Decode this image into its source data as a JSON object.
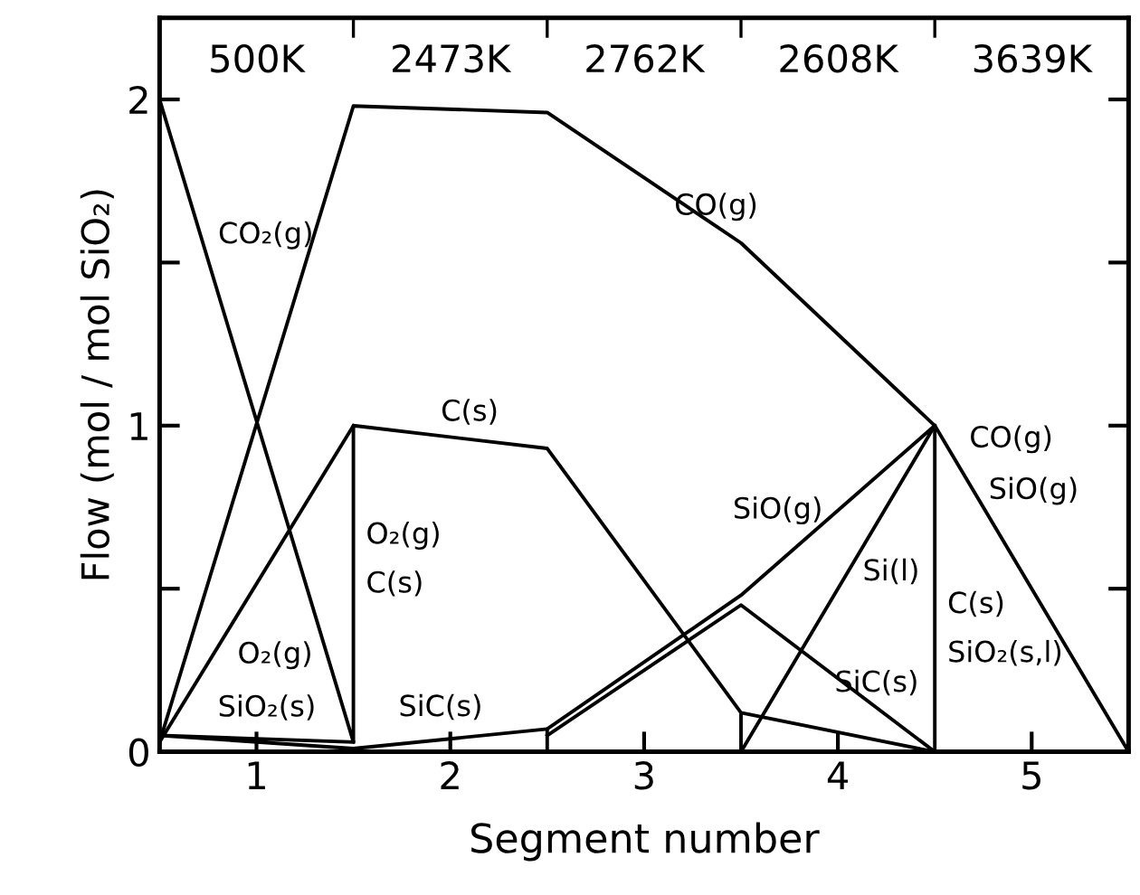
{
  "chart_data": {
    "type": "line",
    "xlabel": "Segment number",
    "ylabel": "Flow (mol / mol SiO₂)",
    "xlim": [
      0.5,
      5.5
    ],
    "xticks": [
      1,
      2,
      3,
      4,
      5
    ],
    "ylim": [
      0,
      2.25
    ],
    "yticks": [
      0,
      {
        "value": 0.5,
        "label": null
      },
      1,
      {
        "value": 1.5,
        "label": null
      },
      2
    ],
    "grid": false,
    "legend": false,
    "marker": "none",
    "line_style": "solid",
    "series": [
      {
        "color": "#000000",
        "x": [
          0.5,
          1.5,
          1.5,
          2.5,
          3.5,
          3.5,
          3.5,
          4.5
        ],
        "values": [
          2.0,
          0.03,
          1.0,
          0.93,
          0.12,
          0.0,
          0.12,
          0.0
        ]
      },
      {
        "color": "#000000",
        "x": [
          0.5,
          1.5,
          2.5,
          3.5,
          4.5,
          5.5
        ],
        "values": [
          0.03,
          1.98,
          1.96,
          1.56,
          1.0,
          0.0
        ]
      },
      {
        "color": "#000000",
        "x": [
          1.5,
          0.5
        ],
        "values": [
          1.0,
          0.03
        ]
      },
      {
        "color": "#000000",
        "x": [
          1.5,
          0.5,
          1.5,
          2.5,
          2.5
        ],
        "values": [
          0.03,
          0.05,
          0.01,
          0.07,
          0.0
        ]
      },
      {
        "color": "#000000",
        "x": [
          2.5,
          3.5,
          4.5,
          3.5
        ],
        "values": [
          0.07,
          0.48,
          1.0,
          0.0
        ]
      },
      {
        "color": "#000000",
        "x": [
          4.5,
          4.5
        ],
        "values": [
          0.0,
          1.0
        ]
      },
      {
        "color": "#000000",
        "x": [
          2.5,
          3.5,
          4.5
        ],
        "values": [
          0.05,
          0.45,
          0.0
        ]
      }
    ],
    "annotations": [
      {
        "text": "CO₂(g)",
        "x": 0.75,
        "y": 1.51
      },
      {
        "text": "CO(g)",
        "x": 3.0,
        "y": 1.76
      },
      {
        "text": "C(s)",
        "x": 2.1,
        "y": 0.958
      },
      {
        "text": "O₂(g)",
        "x": 1.5,
        "y": 0.62
      },
      {
        "text": "C(s)",
        "x": 1.5,
        "y": 0.47
      },
      {
        "text": "O₂(g)",
        "x": 0.85,
        "y": 0.37
      },
      {
        "text": "SiO₂(s)",
        "x": 0.8,
        "y": 0.044
      },
      {
        "text": "SiC(s)",
        "x": 1.95,
        "y": 0.045
      },
      {
        "text": "SiO(g)",
        "x": 4.0,
        "y": 0.74
      },
      {
        "text": "Si(l)",
        "x": 4.05,
        "y": 0.55
      },
      {
        "text": "SiC(s)",
        "x": 4.2,
        "y": 0.135
      },
      {
        "text": "C(s)",
        "x": 4.5,
        "y": 0.45
      },
      {
        "text": "SiO₂(s,l)",
        "x": 4.5,
        "y": 0.3
      },
      {
        "text": "CO(g)",
        "x": 4.6,
        "y": 0.9
      },
      {
        "text": "SiO(g)",
        "x": 4.7,
        "y": 0.8
      },
      "500K",
      "2473K",
      "2762K",
      "2608K",
      "3639K"
    ]
  }
}
